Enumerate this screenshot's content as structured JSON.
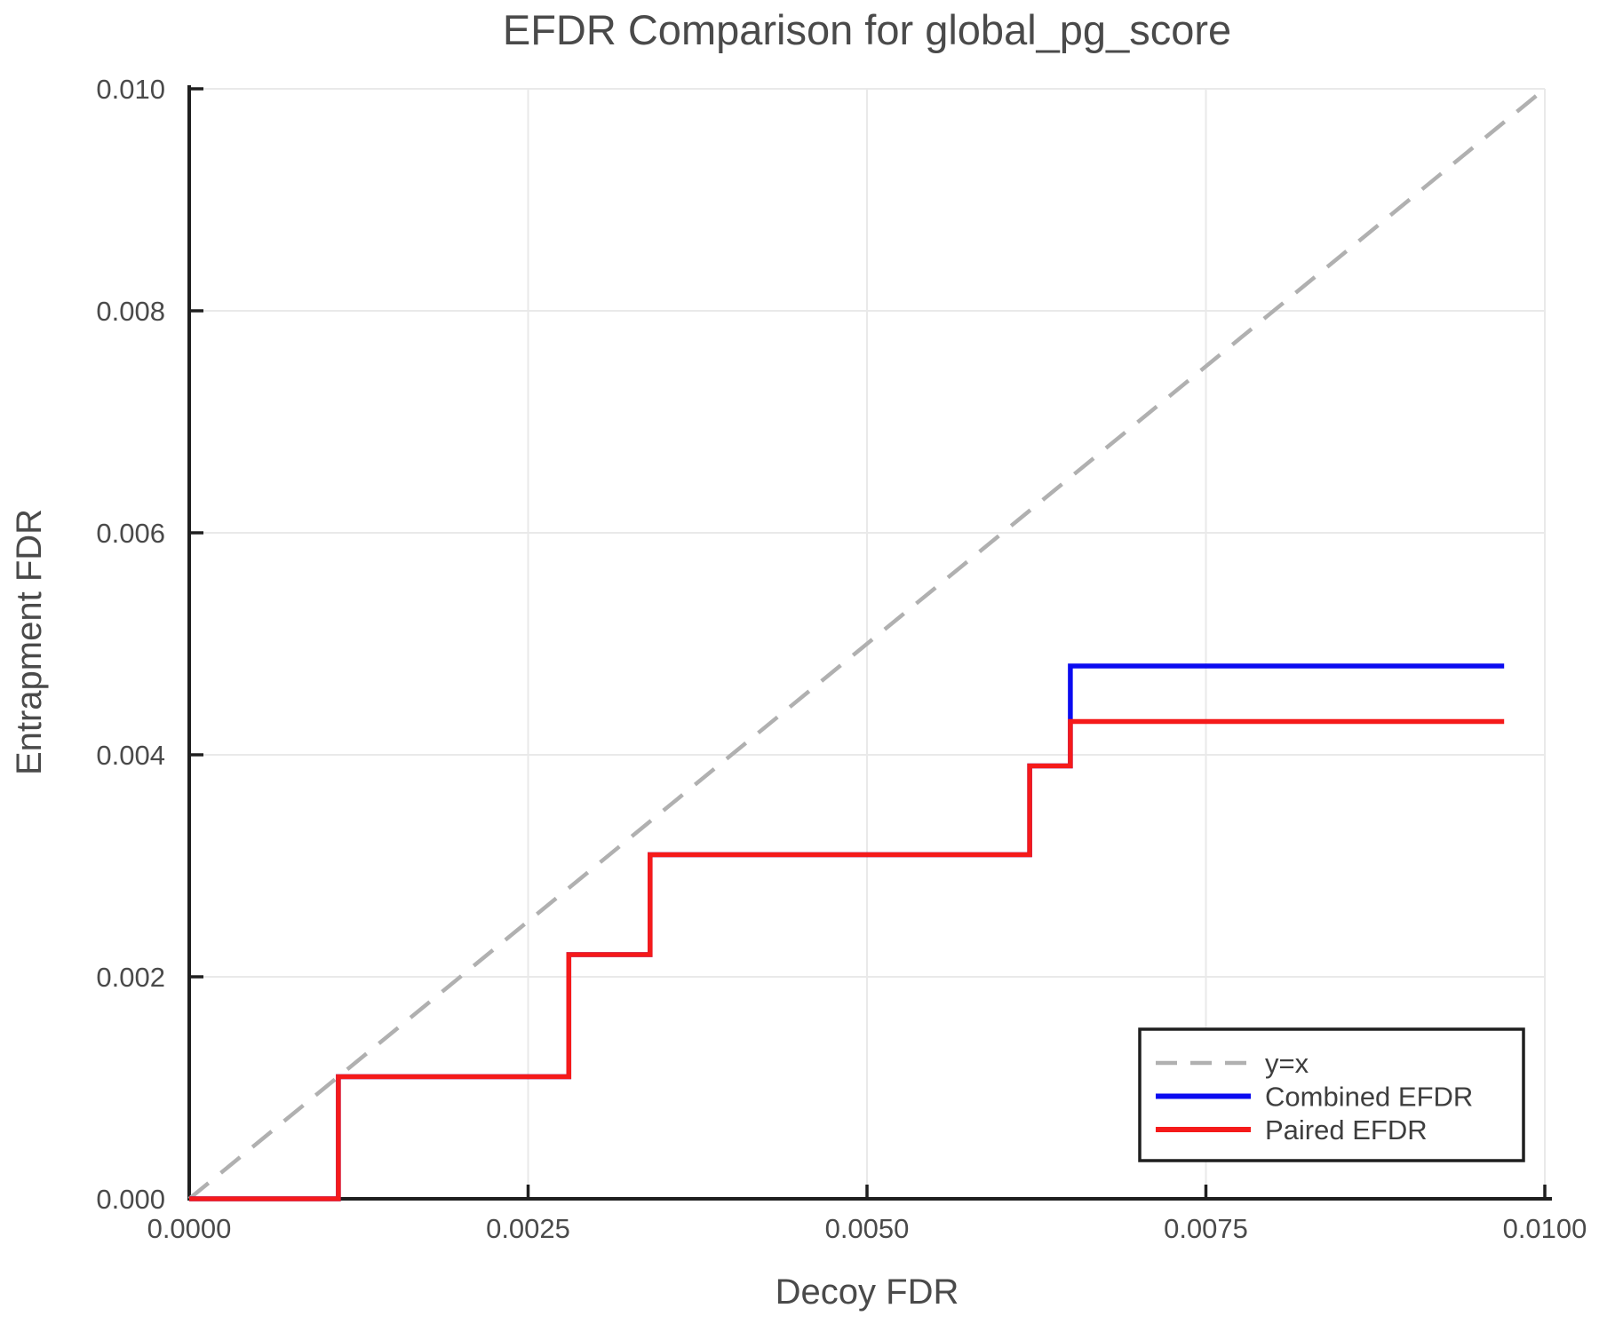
{
  "chart_data": {
    "type": "line",
    "title": "EFDR Comparison for global_pg_score",
    "xlabel": "Decoy FDR",
    "ylabel": "Entrapment FDR",
    "xlim": [
      0.0,
      0.01
    ],
    "ylim": [
      0.0,
      0.01
    ],
    "grid": true,
    "legend_position": "lower right",
    "xticks": {
      "values": [
        0.0,
        0.0025,
        0.005,
        0.0075,
        0.01
      ],
      "labels": [
        "0.0000",
        "0.0025",
        "0.0050",
        "0.0075",
        "0.0100"
      ]
    },
    "yticks": {
      "values": [
        0.0,
        0.002,
        0.004,
        0.006,
        0.008,
        0.01
      ],
      "labels": [
        "0.000",
        "0.002",
        "0.004",
        "0.006",
        "0.008",
        "0.010"
      ]
    },
    "series": [
      {
        "name": "y=x",
        "color": "#b0b0b0",
        "style": "dashed",
        "points": [
          [
            0.0,
            0.0
          ],
          [
            0.01,
            0.01
          ]
        ]
      },
      {
        "name": "Combined EFDR",
        "color": "#0b0bf0",
        "style": "solid",
        "points": [
          [
            0.0,
            0.0
          ],
          [
            0.0011,
            0.0
          ],
          [
            0.0011,
            0.0011
          ],
          [
            0.0028,
            0.0011
          ],
          [
            0.0028,
            0.0022
          ],
          [
            0.0034,
            0.0022
          ],
          [
            0.0034,
            0.0031
          ],
          [
            0.0062,
            0.0031
          ],
          [
            0.0062,
            0.0039
          ],
          [
            0.0065,
            0.0039
          ],
          [
            0.0065,
            0.0048
          ],
          [
            0.0097,
            0.0048
          ]
        ]
      },
      {
        "name": "Paired EFDR",
        "color": "#f51a1a",
        "style": "solid",
        "points": [
          [
            0.0,
            0.0
          ],
          [
            0.0011,
            0.0
          ],
          [
            0.0011,
            0.0011
          ],
          [
            0.0028,
            0.0011
          ],
          [
            0.0028,
            0.0022
          ],
          [
            0.0034,
            0.0022
          ],
          [
            0.0034,
            0.0031
          ],
          [
            0.0062,
            0.0031
          ],
          [
            0.0062,
            0.0039
          ],
          [
            0.0065,
            0.0039
          ],
          [
            0.0065,
            0.0043
          ],
          [
            0.0097,
            0.0043
          ]
        ]
      }
    ]
  },
  "colors": {
    "background": "#ffffff",
    "grid": "#e9e9e9",
    "spine": "#1f1f1f",
    "text": "#4a4a4a",
    "legend_border": "#1f1f1f",
    "legend_text": "#3e3e3e"
  }
}
